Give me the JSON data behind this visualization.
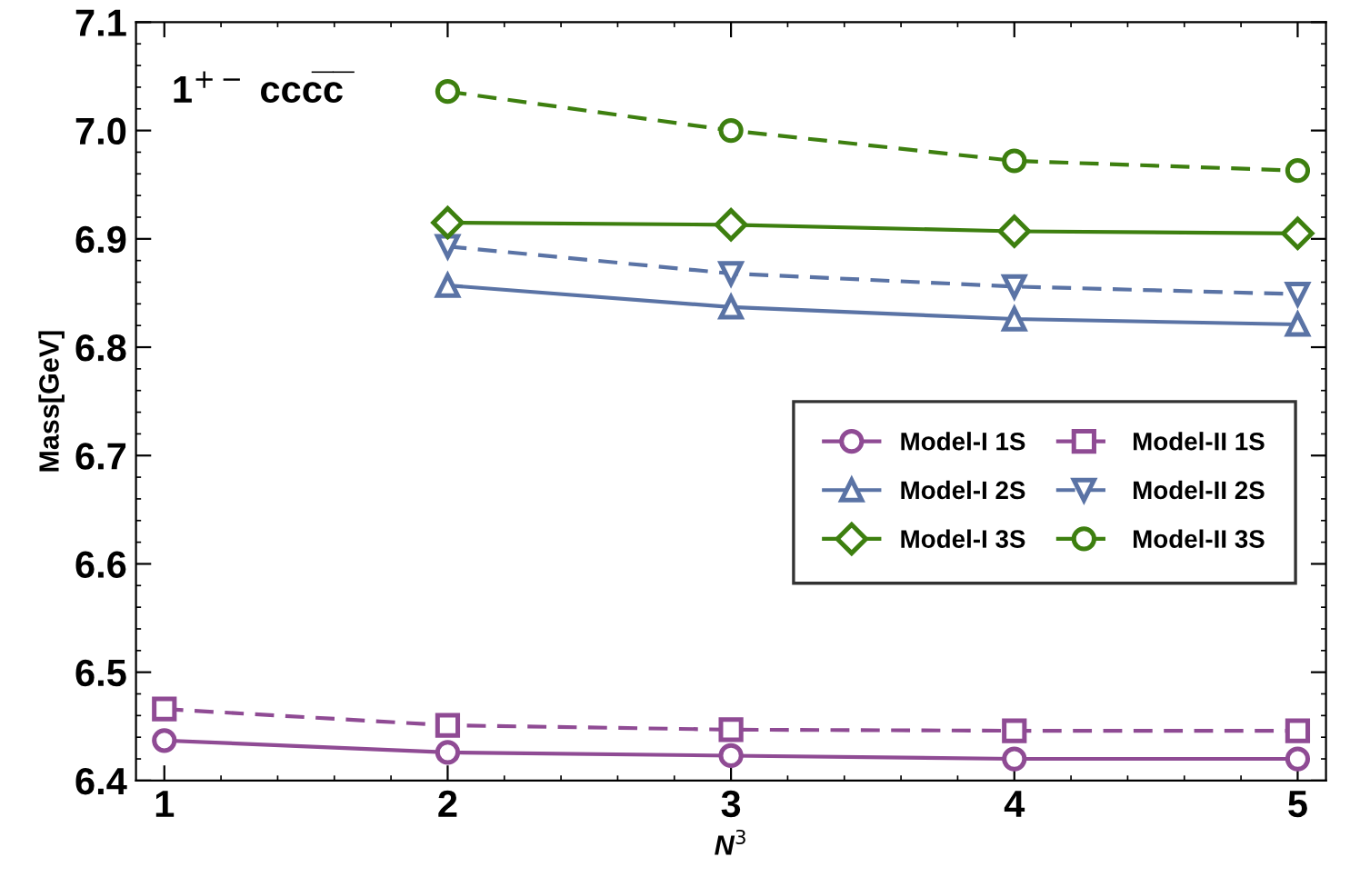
{
  "chart_data": {
    "type": "line",
    "xlabel": "N$^{3}$",
    "ylabel": "Mass[GeV]",
    "annotations": [
      "1$^{+−}$ ccc̅c̅"
    ],
    "xlim": [
      0.9,
      5.1
    ],
    "xticks": [
      1,
      2,
      3,
      4,
      5
    ],
    "ylim": [
      6.4,
      7.1
    ],
    "yticks": [
      6.4,
      6.5,
      6.6,
      6.7,
      6.8,
      6.9,
      {
        "value": 7.0,
        "label": "7.0"
      },
      7.1
    ],
    "grid": false,
    "legend": "right",
    "series": [
      {
        "name": "Model-I 1S",
        "color": "#8f4b94",
        "marker": "circle",
        "line_style": "solid",
        "x": [
          1,
          2,
          3,
          4,
          5
        ],
        "values": [
          6.437,
          6.426,
          6.423,
          6.42,
          6.42
        ]
      },
      {
        "name": "Model-II 1S",
        "color": "#8f4b94",
        "marker": "square",
        "line_style": "dashed",
        "x": [
          1,
          2,
          3,
          4,
          5
        ],
        "values": [
          6.466,
          6.451,
          6.447,
          6.446,
          6.446
        ]
      },
      {
        "name": "Model-I 2S",
        "color": "#5a73a5",
        "marker": "triangle",
        "line_style": "solid",
        "x": [
          2,
          3,
          4,
          5
        ],
        "values": [
          6.857,
          6.837,
          6.826,
          6.821
        ]
      },
      {
        "name": "Model-II 2S",
        "color": "#5a73a5",
        "marker": "triangle_down",
        "line_style": "dashed",
        "x": [
          2,
          3,
          4,
          5
        ],
        "values": [
          6.893,
          6.868,
          6.856,
          6.849
        ]
      },
      {
        "name": "Model-I 3S",
        "color": "#3d7f0f",
        "marker": "diamond",
        "line_style": "solid",
        "x": [
          2,
          3,
          4,
          5
        ],
        "values": [
          6.915,
          6.913,
          6.907,
          6.905
        ]
      },
      {
        "name": "Model-II 3S",
        "color": "#3d7f0f",
        "marker": "circle",
        "line_style": "dashed",
        "x": [
          2,
          3,
          4,
          5
        ],
        "values": [
          7.036,
          7.0,
          6.972,
          6.963
        ]
      }
    ]
  }
}
